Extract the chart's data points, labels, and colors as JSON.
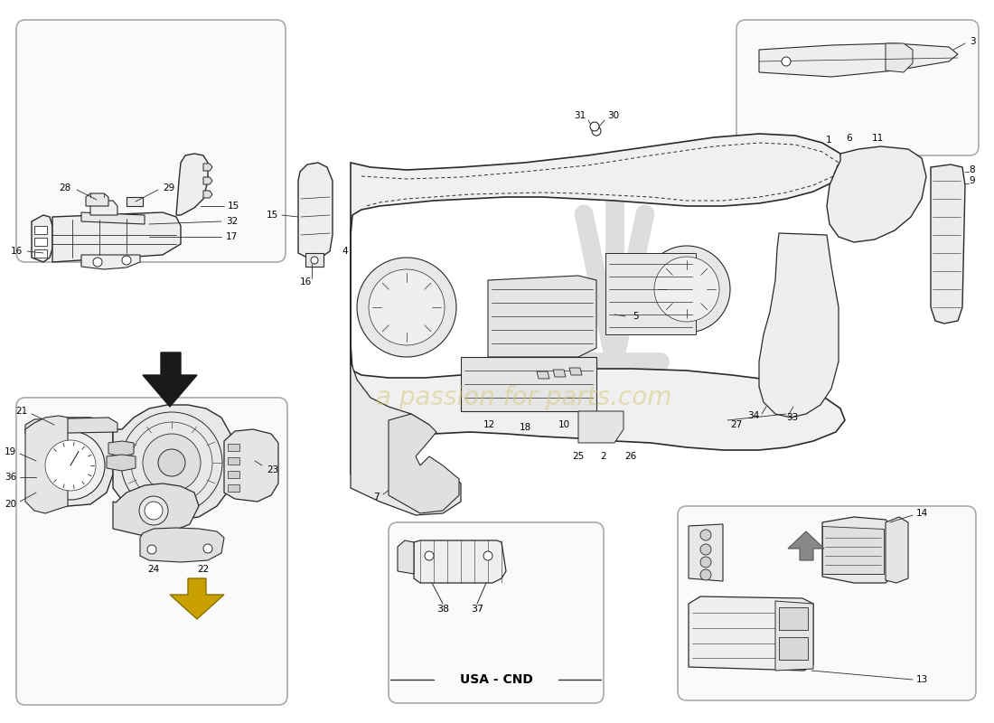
{
  "background_color": "#ffffff",
  "line_color": "#2a2a2a",
  "thin_line": "#3a3a3a",
  "label_color": "#000000",
  "watermark_text": "a passion for parts.com",
  "watermark_color_r": 210,
  "watermark_color_g": 190,
  "watermark_color_b": 130,
  "usa_cnd_label": "USA - CND",
  "box_bg": "#fafafa",
  "box_edge": "#999999",
  "sketch_color": "#4a4a4a",
  "sketch_fill": "#f2f2f2",
  "arrow_color": "#1a1a1a",
  "part_labels": {
    "top_left_box": {
      "28": "28",
      "29": "29",
      "32": "32",
      "17": "17",
      "16": "16",
      "15": "15"
    },
    "center_pillar": {
      "15": "15",
      "16": "16"
    },
    "top_right_box": {
      "3": "3"
    },
    "main_dash": {
      "1": "1",
      "2": "2",
      "4": "4",
      "5": "5",
      "6": "6",
      "7": "7",
      "8": "8",
      "9": "9",
      "10": "10",
      "11": "11",
      "12": "12",
      "18": "18",
      "25": "25",
      "26": "26",
      "27": "27",
      "30": "30",
      "31": "31",
      "33": "33",
      "34": "34"
    },
    "bot_left_box": {
      "19": "19",
      "20": "20",
      "21": "21",
      "22": "22",
      "23": "23",
      "24": "24",
      "36": "36"
    },
    "bot_center_box": {
      "37": "37",
      "38": "38"
    },
    "bot_right_box": {
      "13": "13",
      "14": "14"
    }
  }
}
